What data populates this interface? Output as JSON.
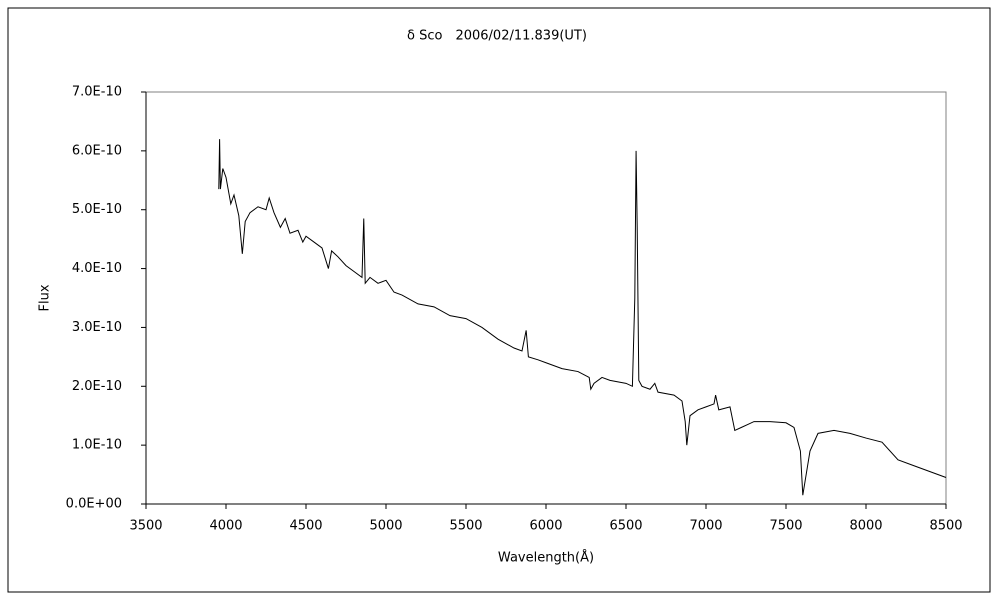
{
  "chart_data": {
    "type": "line",
    "title": "δ Sco　2006/02/11.839(UT)",
    "x_label": "Wavelength(Å)",
    "y_label": "Flux",
    "color": "#000000",
    "xlim": [
      3500,
      8500
    ],
    "xticks": [
      3500,
      4000,
      4500,
      5000,
      5500,
      6000,
      6500,
      7000,
      7500,
      8000,
      8500
    ],
    "ylim": [
      0,
      7e-10
    ],
    "yticks": [
      {
        "value": 0,
        "label": "0.0E+00"
      },
      {
        "value": 1e-10,
        "label": "1.0E-10"
      },
      {
        "value": 2e-10,
        "label": "2.0E-10"
      },
      {
        "value": 3e-10,
        "label": "3.0E-10"
      },
      {
        "value": 4e-10,
        "label": "4.0E-10"
      },
      {
        "value": 5e-10,
        "label": "5.0E-10"
      },
      {
        "value": 6e-10,
        "label": "6.0E-10"
      },
      {
        "value": 7e-10,
        "label": "7.0E-10"
      }
    ],
    "x": [
      3955,
      3960,
      3965,
      3980,
      4000,
      4030,
      4050,
      4080,
      4102,
      4120,
      4150,
      4200,
      4250,
      4270,
      4300,
      4340,
      4370,
      4400,
      4450,
      4480,
      4500,
      4550,
      4600,
      4640,
      4660,
      4700,
      4750,
      4800,
      4850,
      4861,
      4870,
      4900,
      4950,
      5000,
      5050,
      5100,
      5200,
      5300,
      5400,
      5500,
      5600,
      5700,
      5800,
      5850,
      5876,
      5890,
      5950,
      6000,
      6100,
      6200,
      6270,
      6280,
      6300,
      6350,
      6400,
      6500,
      6540,
      6555,
      6563,
      6570,
      6580,
      6600,
      6650,
      6680,
      6700,
      6800,
      6850,
      6870,
      6880,
      6900,
      6950,
      7000,
      7050,
      7060,
      7080,
      7150,
      7180,
      7220,
      7260,
      7300,
      7400,
      7500,
      7550,
      7590,
      7605,
      7620,
      7650,
      7700,
      7800,
      7900,
      8000,
      8100,
      8200,
      8300,
      8400,
      8500
    ],
    "values": [
      5.35e-10,
      6.2e-10,
      5.35e-10,
      5.7e-10,
      5.55e-10,
      5.1e-10,
      5.25e-10,
      4.9e-10,
      4.25e-10,
      4.8e-10,
      4.95e-10,
      5.05e-10,
      5e-10,
      5.2e-10,
      4.95e-10,
      4.7e-10,
      4.85e-10,
      4.6e-10,
      4.65e-10,
      4.45e-10,
      4.55e-10,
      4.45e-10,
      4.35e-10,
      4e-10,
      4.3e-10,
      4.2e-10,
      4.05e-10,
      3.95e-10,
      3.85e-10,
      4.85e-10,
      3.75e-10,
      3.85e-10,
      3.75e-10,
      3.8e-10,
      3.6e-10,
      3.55e-10,
      3.4e-10,
      3.35e-10,
      3.2e-10,
      3.15e-10,
      3e-10,
      2.8e-10,
      2.65e-10,
      2.6e-10,
      2.95e-10,
      2.5e-10,
      2.45e-10,
      2.4e-10,
      2.3e-10,
      2.25e-10,
      2.15e-10,
      1.95e-10,
      2.05e-10,
      2.15e-10,
      2.1e-10,
      2.05e-10,
      2e-10,
      3.5e-10,
      6e-10,
      4.7e-10,
      2.1e-10,
      2e-10,
      1.95e-10,
      2.05e-10,
      1.9e-10,
      1.85e-10,
      1.75e-10,
      1.4e-10,
      1e-10,
      1.5e-10,
      1.6e-10,
      1.65e-10,
      1.7e-10,
      1.85e-10,
      1.6e-10,
      1.65e-10,
      1.25e-10,
      1.3e-10,
      1.35e-10,
      1.4e-10,
      1.4e-10,
      1.38e-10,
      1.3e-10,
      9e-11,
      1.5e-11,
      4e-11,
      9e-11,
      1.2e-10,
      1.25e-10,
      1.2e-10,
      1.12e-10,
      1.05e-10,
      7.5e-11,
      6.5e-11,
      5.5e-11,
      4.5e-11
    ]
  }
}
